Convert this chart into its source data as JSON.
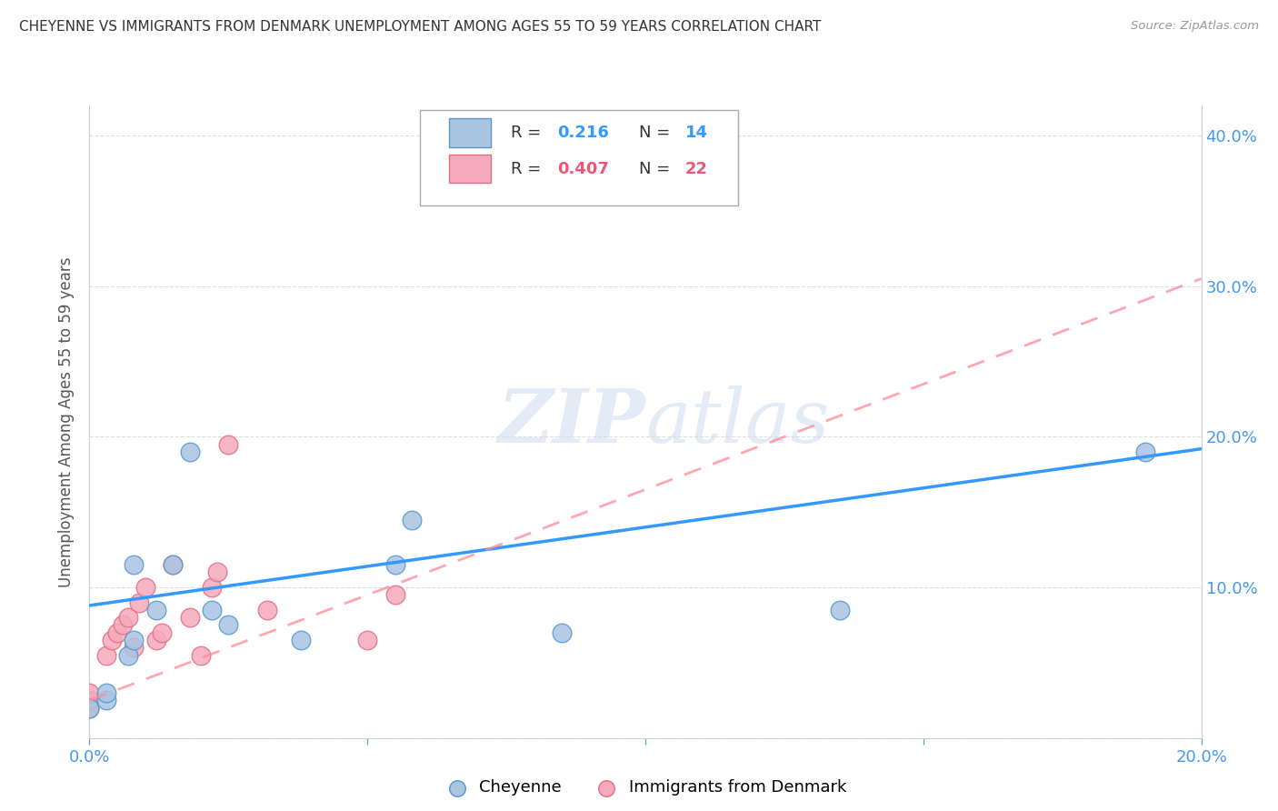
{
  "title": "CHEYENNE VS IMMIGRANTS FROM DENMARK UNEMPLOYMENT AMONG AGES 55 TO 59 YEARS CORRELATION CHART",
  "source": "Source: ZipAtlas.com",
  "ylabel": "Unemployment Among Ages 55 to 59 years",
  "xlim": [
    0.0,
    0.2
  ],
  "ylim": [
    0.0,
    0.42
  ],
  "xticks": [
    0.0,
    0.05,
    0.1,
    0.15,
    0.2
  ],
  "yticks": [
    0.0,
    0.1,
    0.2,
    0.3,
    0.4
  ],
  "color_cheyenne": "#aac4e2",
  "color_denmark": "#f5aabb",
  "line_color_cheyenne": "#3399ff",
  "line_color_denmark": "#ff8899",
  "cheyenne_x": [
    0.0,
    0.003,
    0.003,
    0.007,
    0.008,
    0.008,
    0.012,
    0.015,
    0.018,
    0.022,
    0.025,
    0.038,
    0.055,
    0.058,
    0.085,
    0.135,
    0.19
  ],
  "cheyenne_y": [
    0.02,
    0.025,
    0.03,
    0.055,
    0.065,
    0.115,
    0.085,
    0.115,
    0.19,
    0.085,
    0.075,
    0.065,
    0.115,
    0.145,
    0.07,
    0.085,
    0.19
  ],
  "denmark_x": [
    0.0,
    0.0,
    0.0,
    0.003,
    0.004,
    0.005,
    0.006,
    0.007,
    0.008,
    0.009,
    0.01,
    0.012,
    0.013,
    0.015,
    0.018,
    0.02,
    0.022,
    0.023,
    0.025,
    0.032,
    0.05,
    0.055
  ],
  "denmark_y": [
    0.02,
    0.025,
    0.03,
    0.055,
    0.065,
    0.07,
    0.075,
    0.08,
    0.06,
    0.09,
    0.1,
    0.065,
    0.07,
    0.115,
    0.08,
    0.055,
    0.1,
    0.11,
    0.195,
    0.085,
    0.065,
    0.095
  ],
  "chey_line_x0": 0.0,
  "chey_line_y0": 0.088,
  "chey_line_x1": 0.2,
  "chey_line_y1": 0.192,
  "den_line_x0": 0.0,
  "den_line_y0": 0.025,
  "den_line_x1": 0.2,
  "den_line_y1": 0.305
}
